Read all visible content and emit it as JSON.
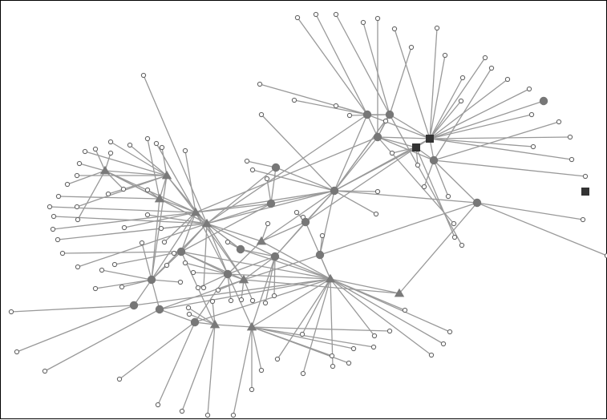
{
  "diagram": {
    "type": "network-graph",
    "colors": {
      "background": "#ffffff",
      "border": "#000000",
      "edge": "#999999",
      "leaf_fill": "#ffffff",
      "leaf_stroke": "#666666",
      "circle_hub": "#777777",
      "triangle_hub": "#7a7a7a",
      "square_hub": "#333333"
    },
    "node_shapes": [
      "circle",
      "triangle",
      "square",
      "small-open-circle"
    ],
    "edge_style": "straight grey lines"
  }
}
